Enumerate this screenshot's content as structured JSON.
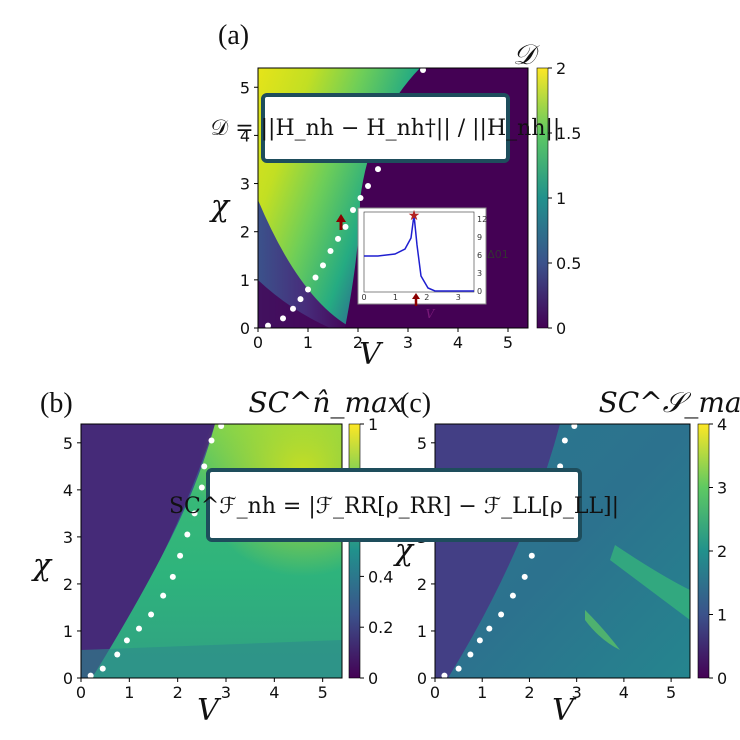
{
  "panels": [
    {
      "label": "(a)",
      "xlabel": "V",
      "ylabel": "χ",
      "xticks": [
        "0",
        "1",
        "2",
        "3",
        "4",
        "5"
      ],
      "yticks": [
        "0",
        "1",
        "2",
        "3",
        "4",
        "5"
      ],
      "colorbar_title": "𝒟",
      "colorbar_ticks": [
        "0",
        "0.5",
        "1",
        "1.5",
        "2"
      ],
      "formula": "𝒟 = ||H_nh − H_nh†|| / ||H_nh||",
      "inset": {
        "ylabel": "Δ01",
        "xlabel": "V",
        "xticks": [
          "0",
          "1",
          "2",
          "3"
        ],
        "yticks": [
          "0",
          "3",
          "6",
          "9",
          "12"
        ]
      }
    },
    {
      "label": "(b)",
      "xlabel": "V",
      "ylabel": "χ",
      "xticks": [
        "0",
        "1",
        "2",
        "3",
        "4",
        "5"
      ],
      "yticks": [
        "0",
        "1",
        "2",
        "3",
        "4",
        "5"
      ],
      "colorbar_title": "SC^n̂_max",
      "colorbar_ticks": [
        "0",
        "0.2",
        "0.4",
        "1"
      ],
      "formula": "SC^ℱ_nh = |ℱ_RR[ρ_RR] − ℱ_LL[ρ_LL]|"
    },
    {
      "label": "(c)",
      "xlabel": "V",
      "ylabel": "χ",
      "xticks": [
        "0",
        "1",
        "2",
        "3",
        "4",
        "5"
      ],
      "yticks": [
        "0",
        "1",
        "2",
        "3",
        "4",
        "5"
      ],
      "colorbar_title": "SC^𝒮_max",
      "colorbar_ticks": [
        "0",
        "1",
        "2",
        "3",
        "4"
      ]
    }
  ],
  "colors": {
    "viridis_low": "#440154",
    "viridis_mid": "#21918c",
    "viridis_high": "#fde725",
    "marker": "#8b0000"
  },
  "chart_data": [
    {
      "type": "heatmap",
      "panel": "(a)",
      "xlim": [
        0,
        5.4
      ],
      "ylim": [
        0,
        5.4
      ],
      "colorbar_range": [
        0,
        2
      ],
      "boundary_points": [
        [
          0.2,
          0.05
        ],
        [
          0.5,
          0.2
        ],
        [
          0.7,
          0.4
        ],
        [
          0.85,
          0.6
        ],
        [
          1.0,
          0.8
        ],
        [
          1.15,
          1.05
        ],
        [
          1.3,
          1.3
        ],
        [
          1.45,
          1.6
        ],
        [
          1.6,
          1.85
        ],
        [
          1.75,
          2.1
        ],
        [
          1.9,
          2.45
        ],
        [
          2.05,
          2.7
        ],
        [
          2.2,
          2.95
        ],
        [
          2.4,
          3.3
        ],
        [
          2.6,
          3.7
        ],
        [
          2.9,
          4.3
        ],
        [
          3.3,
          5.45
        ]
      ],
      "marker_V": 1.7
    },
    {
      "type": "heatmap",
      "panel": "(b)",
      "xlim": [
        0,
        5.4
      ],
      "ylim": [
        0,
        5.4
      ],
      "colorbar_range": [
        0,
        1
      ],
      "boundary_points": [
        [
          0.2,
          0.05
        ],
        [
          0.45,
          0.2
        ],
        [
          0.75,
          0.5
        ],
        [
          0.95,
          0.8
        ],
        [
          1.2,
          1.05
        ],
        [
          1.45,
          1.35
        ],
        [
          1.7,
          1.75
        ],
        [
          1.9,
          2.15
        ],
        [
          2.05,
          2.6
        ],
        [
          2.2,
          3.05
        ],
        [
          2.35,
          3.5
        ],
        [
          2.5,
          4.05
        ],
        [
          2.55,
          4.5
        ],
        [
          2.7,
          5.05
        ],
        [
          2.9,
          5.4
        ]
      ]
    },
    {
      "type": "heatmap",
      "panel": "(c)",
      "xlim": [
        0,
        5.4
      ],
      "ylim": [
        0,
        5.4
      ],
      "colorbar_range": [
        0,
        4
      ],
      "boundary_points": [
        [
          0.2,
          0.05
        ],
        [
          0.5,
          0.2
        ],
        [
          0.75,
          0.5
        ],
        [
          0.95,
          0.8
        ],
        [
          1.15,
          1.05
        ],
        [
          1.4,
          1.35
        ],
        [
          1.65,
          1.75
        ],
        [
          1.9,
          2.15
        ],
        [
          2.05,
          2.6
        ],
        [
          2.2,
          3.05
        ],
        [
          2.35,
          3.5
        ],
        [
          2.5,
          4.05
        ],
        [
          2.65,
          4.5
        ],
        [
          2.75,
          5.05
        ],
        [
          2.95,
          5.4
        ]
      ]
    }
  ]
}
